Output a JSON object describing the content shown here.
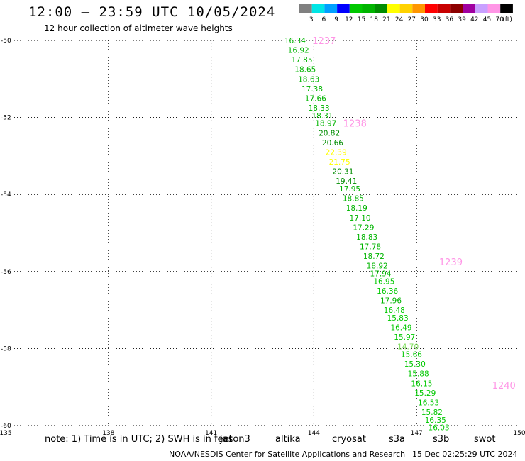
{
  "header": {
    "title": "12:00 – 23:59 UTC 10/05/2024",
    "subtitle": "12 hour collection of altimeter wave heights"
  },
  "legend": {
    "bins": [
      {
        "label": "3",
        "color": "#808080"
      },
      {
        "label": "6",
        "color": "#00e5e5"
      },
      {
        "label": "9",
        "color": "#00a0ff"
      },
      {
        "label": "12",
        "color": "#0000ff"
      },
      {
        "label": "15",
        "color": "#00c800"
      },
      {
        "label": "18",
        "color": "#00b400"
      },
      {
        "label": "21",
        "color": "#008c00"
      },
      {
        "label": "24",
        "color": "#ffff00"
      },
      {
        "label": "27",
        "color": "#ffd200"
      },
      {
        "label": "30",
        "color": "#ff9600"
      },
      {
        "label": "33",
        "color": "#ff0000"
      },
      {
        "label": "36",
        "color": "#c80000"
      },
      {
        "label": "39",
        "color": "#8c0000"
      },
      {
        "label": "42",
        "color": "#a000a0"
      },
      {
        "label": "45",
        "color": "#c8a0ff"
      },
      {
        "label": "70",
        "color": "#ff96e6"
      }
    ],
    "overflow_color": "#000000",
    "unit": "(ft)"
  },
  "map": {
    "lon_ticks": [
      "135",
      "138",
      "141",
      "144",
      "147",
      "150"
    ],
    "lat_ticks": [
      "-50",
      "-52",
      "-54",
      "-56",
      "-58",
      "-60"
    ],
    "lon_range": [
      135,
      150
    ],
    "lat_range": [
      -50,
      -60
    ],
    "grid": "dotted",
    "time_labels": [
      {
        "text": "1237",
        "lon": 144.3,
        "lat": -50.0,
        "color": "#ff96e6"
      },
      {
        "text": "1238",
        "lon": 145.2,
        "lat": -52.15,
        "color": "#ff96e6"
      },
      {
        "text": "1239",
        "lon": 148.0,
        "lat": -55.75,
        "color": "#ff96e6"
      },
      {
        "text": "1240",
        "lon": 149.55,
        "lat": -58.95,
        "color": "#ff96e6"
      }
    ],
    "observations": [
      {
        "value": "16.34",
        "lon": 143.45,
        "lat": -50.0,
        "color": "#00b400"
      },
      {
        "value": "16.92",
        "lon": 143.55,
        "lat": -50.25,
        "color": "#00b400"
      },
      {
        "value": "17.85",
        "lon": 143.65,
        "lat": -50.5,
        "color": "#00b400"
      },
      {
        "value": "18.65",
        "lon": 143.75,
        "lat": -50.75,
        "color": "#00b400"
      },
      {
        "value": "18.63",
        "lon": 143.85,
        "lat": -51.0,
        "color": "#00b400"
      },
      {
        "value": "17.38",
        "lon": 143.95,
        "lat": -51.25,
        "color": "#00b400"
      },
      {
        "value": "17.66",
        "lon": 144.05,
        "lat": -51.5,
        "color": "#00b400"
      },
      {
        "value": "18.33",
        "lon": 144.15,
        "lat": -51.75,
        "color": "#00b400"
      },
      {
        "value": "18.31",
        "lon": 144.25,
        "lat": -51.95,
        "color": "#00b400"
      },
      {
        "value": "18.97",
        "lon": 144.35,
        "lat": -52.15,
        "color": "#00b400"
      },
      {
        "value": "20.82",
        "lon": 144.45,
        "lat": -52.4,
        "color": "#008c00"
      },
      {
        "value": "20.66",
        "lon": 144.55,
        "lat": -52.65,
        "color": "#008c00"
      },
      {
        "value": "22.39",
        "lon": 144.65,
        "lat": -52.9,
        "color": "#ffff00"
      },
      {
        "value": "21.75",
        "lon": 144.75,
        "lat": -53.15,
        "color": "#ffff00"
      },
      {
        "value": "20.31",
        "lon": 144.85,
        "lat": -53.4,
        "color": "#008c00"
      },
      {
        "value": "19.41",
        "lon": 144.95,
        "lat": -53.65,
        "color": "#008c00"
      },
      {
        "value": "17.95",
        "lon": 145.05,
        "lat": -53.85,
        "color": "#00b400"
      },
      {
        "value": "18.85",
        "lon": 145.15,
        "lat": -54.1,
        "color": "#00b400"
      },
      {
        "value": "18.19",
        "lon": 145.25,
        "lat": -54.35,
        "color": "#00b400"
      },
      {
        "value": "17.10",
        "lon": 145.35,
        "lat": -54.6,
        "color": "#00b400"
      },
      {
        "value": "17.29",
        "lon": 145.45,
        "lat": -54.85,
        "color": "#00b400"
      },
      {
        "value": "18.83",
        "lon": 145.55,
        "lat": -55.1,
        "color": "#00b400"
      },
      {
        "value": "17.78",
        "lon": 145.65,
        "lat": -55.35,
        "color": "#00b400"
      },
      {
        "value": "18.72",
        "lon": 145.75,
        "lat": -55.6,
        "color": "#00b400"
      },
      {
        "value": "18.92",
        "lon": 145.85,
        "lat": -55.85,
        "color": "#00b400"
      },
      {
        "value": "17.94",
        "lon": 145.95,
        "lat": -56.05,
        "color": "#00b400"
      },
      {
        "value": "16.95",
        "lon": 146.05,
        "lat": -56.25,
        "color": "#00c800"
      },
      {
        "value": "16.36",
        "lon": 146.15,
        "lat": -56.5,
        "color": "#00c800"
      },
      {
        "value": "17.96",
        "lon": 146.25,
        "lat": -56.75,
        "color": "#00b400"
      },
      {
        "value": "16.48",
        "lon": 146.35,
        "lat": -57.0,
        "color": "#00c800"
      },
      {
        "value": "15.83",
        "lon": 146.45,
        "lat": -57.2,
        "color": "#00c800"
      },
      {
        "value": "16.49",
        "lon": 146.55,
        "lat": -57.45,
        "color": "#00c800"
      },
      {
        "value": "15.97",
        "lon": 146.65,
        "lat": -57.7,
        "color": "#00c800"
      },
      {
        "value": "14.70",
        "lon": 146.75,
        "lat": -57.95,
        "color": "#7ddc5a"
      },
      {
        "value": "15.66",
        "lon": 146.85,
        "lat": -58.15,
        "color": "#00c800"
      },
      {
        "value": "15.30",
        "lon": 146.95,
        "lat": -58.4,
        "color": "#00c800"
      },
      {
        "value": "15.88",
        "lon": 147.05,
        "lat": -58.65,
        "color": "#00c800"
      },
      {
        "value": "16.15",
        "lon": 147.15,
        "lat": -58.9,
        "color": "#00c800"
      },
      {
        "value": "15.29",
        "lon": 147.25,
        "lat": -59.15,
        "color": "#00c800"
      },
      {
        "value": "16.53",
        "lon": 147.35,
        "lat": -59.4,
        "color": "#00c800"
      },
      {
        "value": "15.82",
        "lon": 147.45,
        "lat": -59.65,
        "color": "#00c800"
      },
      {
        "value": "16.35",
        "lon": 147.55,
        "lat": -59.85,
        "color": "#00c800"
      },
      {
        "value": "16.03",
        "lon": 147.65,
        "lat": -60.05,
        "color": "#00c800"
      }
    ]
  },
  "note": {
    "text": "note: 1) Time is in UTC; 2) SWH is in feet",
    "satellites": [
      {
        "name": "jason3",
        "color": "#008c00"
      },
      {
        "name": "altika",
        "color": "#ff9600"
      },
      {
        "name": "cryosat",
        "color": "#ff0000"
      },
      {
        "name": "s3a",
        "color": "#8c0000"
      },
      {
        "name": "s3b",
        "color": "#c8a0ff"
      },
      {
        "name": "swot",
        "color": "#ff96e6"
      }
    ]
  },
  "footer": {
    "credit": "NOAA/NESDIS Center for Satellite Applications and Research",
    "timestamp": "15 Dec 02:25:29 UTC 2024"
  }
}
